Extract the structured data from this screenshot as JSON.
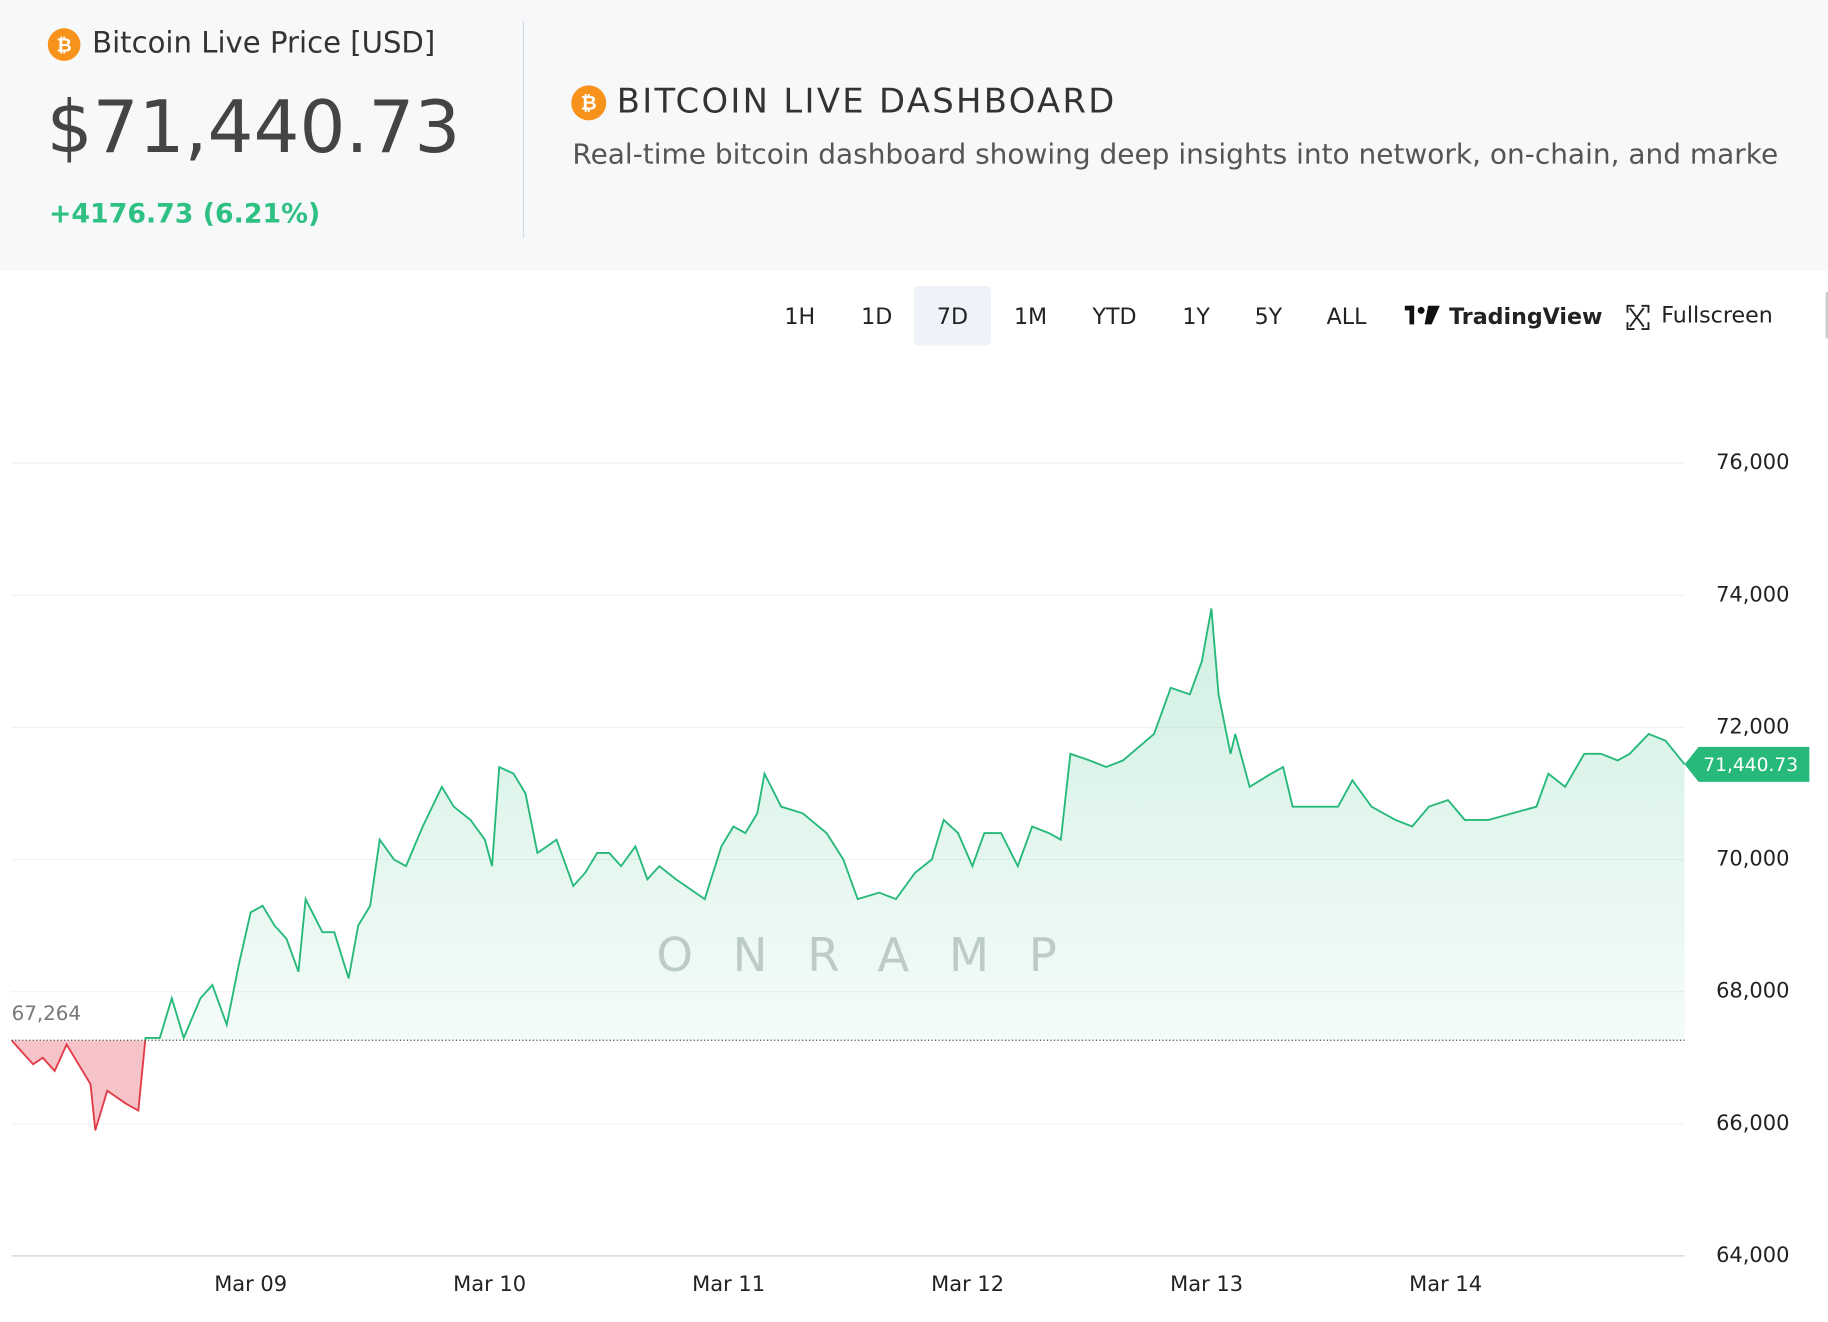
{
  "header": {
    "coin_label": "Bitcoin Live Price [USD]",
    "price": "$71,440.73",
    "change": "+4176.73 (6.21%)",
    "dashboard_title": "BITCOIN LIVE DASHBOARD",
    "description": "Real-time bitcoin dashboard showing deep insights into network, on-chain, and marke"
  },
  "toolbar": {
    "ranges": [
      "1H",
      "1D",
      "7D",
      "1M",
      "YTD",
      "1Y",
      "5Y",
      "ALL"
    ],
    "active_range": "7D",
    "tradingview": "TradingView",
    "fullscreen": "Fullscreen"
  },
  "chart_data": {
    "type": "area",
    "watermark": "ONRAMP",
    "color": "#26b97a",
    "negative_color": "#e23b48",
    "baseline": {
      "value": 67264,
      "label": "67,264"
    },
    "last_price": {
      "value": 71440.73,
      "label": "71,440.73"
    },
    "xlim": [
      8,
      15
    ],
    "ylim": [
      64000,
      77200
    ],
    "xticks": [
      {
        "value": 9,
        "label": "Mar 09"
      },
      {
        "value": 10,
        "label": "Mar 10"
      },
      {
        "value": 11,
        "label": "Mar 11"
      },
      {
        "value": 12,
        "label": "Mar 12"
      },
      {
        "value": 13,
        "label": "Mar 13"
      },
      {
        "value": 14,
        "label": "Mar 14"
      }
    ],
    "yticks": [
      {
        "value": 64000,
        "label": "64,000"
      },
      {
        "value": 66000,
        "label": "66,000"
      },
      {
        "value": 68000,
        "label": "68,000"
      },
      {
        "value": 70000,
        "label": "70,000"
      },
      {
        "value": 72000,
        "label": "72,000"
      },
      {
        "value": 74000,
        "label": "74,000"
      },
      {
        "value": 76000,
        "label": "76,000"
      }
    ],
    "x": [
      8,
      8.04,
      8.09,
      8.13,
      8.18,
      8.23,
      8.28,
      8.33,
      8.35,
      8.4,
      8.48,
      8.53,
      8.56,
      8.62,
      8.67,
      8.72,
      8.79,
      8.84,
      8.9,
      8.95,
      9,
      9.05,
      9.1,
      9.15,
      9.2,
      9.23,
      9.3,
      9.35,
      9.41,
      9.45,
      9.5,
      9.54,
      9.6,
      9.65,
      9.72,
      9.8,
      9.85,
      9.92,
      9.98,
      10.01,
      10.04,
      10.1,
      10.15,
      10.2,
      10.28,
      10.35,
      10.4,
      10.45,
      10.5,
      10.55,
      10.61,
      10.66,
      10.71,
      10.78,
      10.82,
      10.9,
      10.97,
      11.02,
      11.07,
      11.12,
      11.15,
      11.22,
      11.31,
      11.41,
      11.48,
      11.54,
      11.63,
      11.7,
      11.78,
      11.85,
      11.9,
      11.96,
      12.02,
      12.07,
      12.14,
      12.21,
      12.27,
      12.34,
      12.39,
      12.43,
      12.51,
      12.58,
      12.65,
      12.78,
      12.85,
      12.93,
      12.98,
      13.02,
      13.05,
      13.1,
      13.12,
      13.18,
      13.27,
      13.32,
      13.36,
      13.47,
      13.55,
      13.61,
      13.69,
      13.79,
      13.86,
      13.93,
      14.01,
      14.08,
      14.18,
      14.28,
      14.38,
      14.43,
      14.5,
      14.58,
      14.65,
      14.72,
      14.77,
      14.85,
      14.92,
      15
    ],
    "values": [
      67264,
      67100,
      66900,
      67000,
      66800,
      67200,
      66900,
      66600,
      65900,
      66500,
      66300,
      66200,
      67300,
      67300,
      67900,
      67300,
      67900,
      68100,
      67500,
      68400,
      69200,
      69300,
      69000,
      68800,
      68300,
      69400,
      68900,
      68900,
      68200,
      69000,
      69300,
      70300,
      70000,
      69900,
      70500,
      71100,
      70800,
      70600,
      70300,
      69900,
      71400,
      71300,
      71000,
      70100,
      70300,
      69600,
      69800,
      70100,
      70100,
      69900,
      70200,
      69700,
      69900,
      69700,
      69600,
      69400,
      70200,
      70500,
      70400,
      70700,
      71300,
      70800,
      70700,
      70400,
      70000,
      69400,
      69500,
      69400,
      69800,
      70000,
      70600,
      70400,
      69900,
      70400,
      70400,
      69900,
      70500,
      70400,
      70300,
      71600,
      71500,
      71400,
      71500,
      71900,
      72600,
      72500,
      73000,
      73800,
      72500,
      71600,
      71900,
      71100,
      71300,
      71400,
      70800,
      70800,
      70800,
      71200,
      70800,
      70600,
      70500,
      70800,
      70900,
      70600,
      70600,
      70700,
      70800,
      71300,
      71100,
      71600,
      71600,
      71500,
      71600,
      71900,
      71800,
      71440.73
    ]
  }
}
